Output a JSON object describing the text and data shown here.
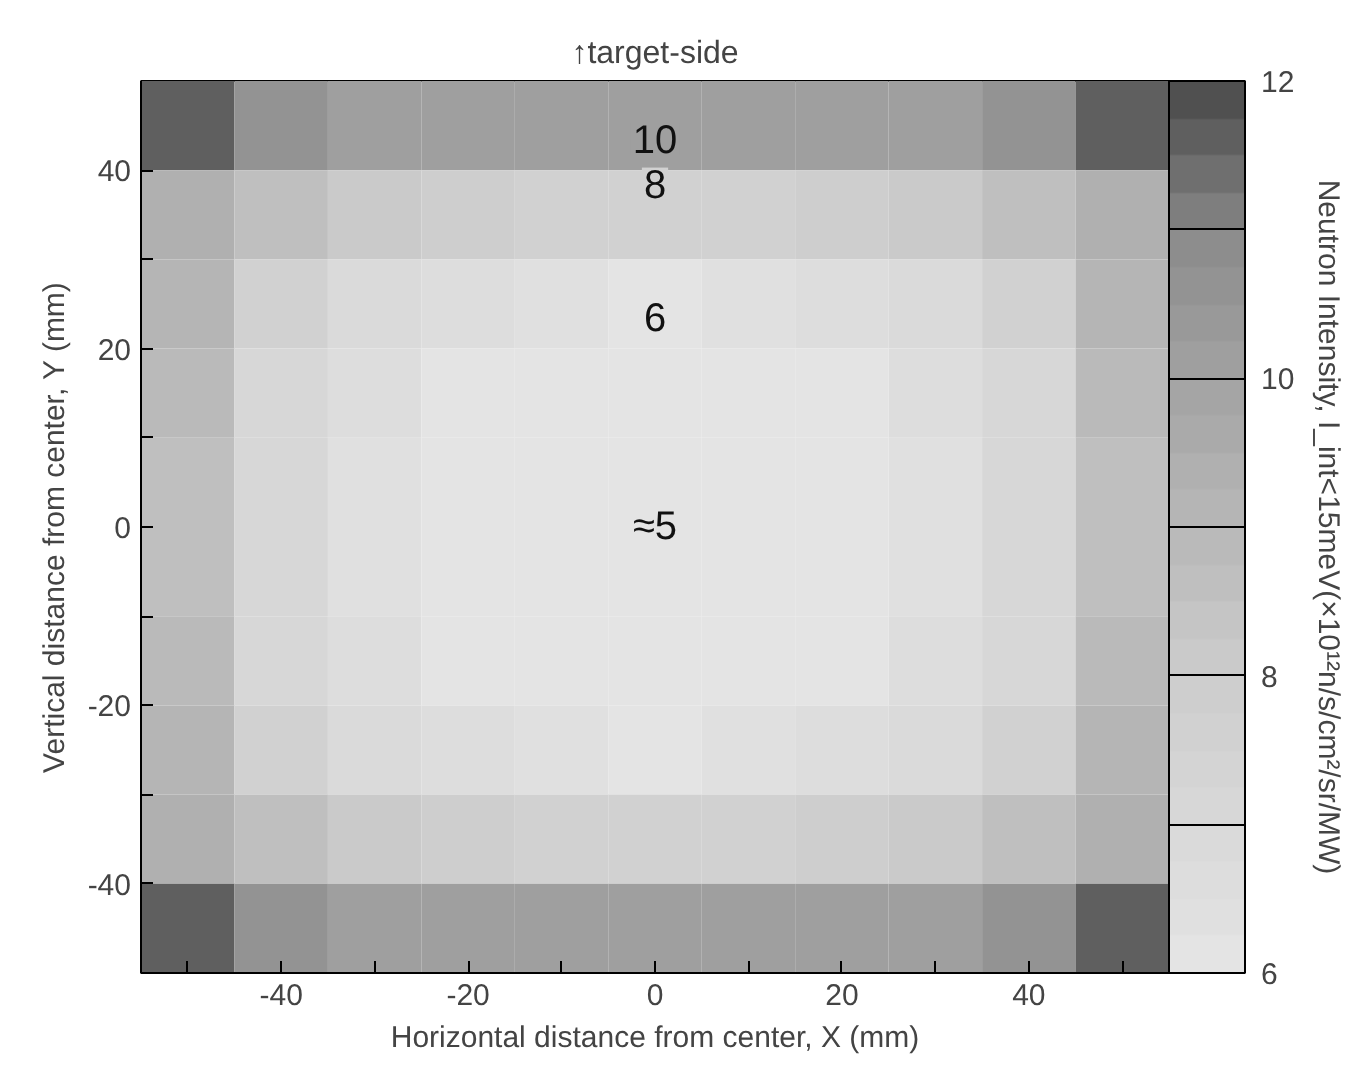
{
  "chart_data": {
    "type": "heatmap",
    "title": "↑target-side",
    "xlabel": "Horizontal distance from center, X (mm)",
    "ylabel": "Vertical distance from center, Y (mm)",
    "clabel": "Neutron Intensity, I_int<15meV(×10¹²n/s/cm²/sr/MW)",
    "x": [
      -50,
      -40,
      -30,
      -20,
      -10,
      0,
      10,
      20,
      30,
      40,
      50
    ],
    "y": [
      45,
      35,
      25,
      15,
      5,
      -5,
      -15,
      -25,
      -35,
      -45
    ],
    "cells": [
      [
        11.5,
        10.5,
        10,
        10,
        10,
        10,
        10,
        10,
        10,
        10.5,
        11.5
      ],
      [
        9.5,
        8.5,
        8,
        7.8,
        7.7,
        7.7,
        7.7,
        7.8,
        8,
        8.5,
        9.5
      ],
      [
        9,
        7.5,
        6.8,
        6.5,
        6.3,
        6.2,
        6.3,
        6.5,
        6.8,
        7.5,
        9
      ],
      [
        8.8,
        7.2,
        6.5,
        6,
        6,
        6,
        6,
        6,
        6.5,
        7.2,
        8.8
      ],
      [
        8.7,
        7,
        6.3,
        6,
        6,
        6,
        6,
        6,
        6.3,
        7,
        8.7
      ],
      [
        8.7,
        7,
        6.3,
        6,
        6,
        6,
        6,
        6,
        6.3,
        7,
        8.7
      ],
      [
        8.8,
        7.2,
        6.5,
        6,
        6,
        6,
        6,
        6,
        6.5,
        7.2,
        8.8
      ],
      [
        9,
        7.5,
        6.8,
        6.5,
        6.3,
        6.2,
        6.3,
        6.5,
        6.8,
        7.5,
        9
      ],
      [
        9.5,
        8.5,
        8,
        7.8,
        7.7,
        7.7,
        7.7,
        7.8,
        8,
        8.5,
        9.5
      ],
      [
        11.5,
        10.5,
        10,
        10,
        10,
        10,
        10,
        10,
        10,
        10.5,
        11.5
      ]
    ],
    "clim": [
      6,
      12
    ],
    "cticks": [
      6,
      {
        "value": 7,
        "label": null
      },
      8,
      {
        "value": 9,
        "label": null
      },
      10,
      {
        "value": 11,
        "label": null
      },
      12
    ],
    "xlim": [
      -55,
      55
    ],
    "xticks": [
      {
        "value": -50,
        "label": null
      },
      -40,
      {
        "value": -30,
        "label": null
      },
      -20,
      {
        "value": -10,
        "label": null
      },
      0,
      {
        "value": 10,
        "label": null
      },
      20,
      {
        "value": 30,
        "label": null
      },
      40,
      {
        "value": 50,
        "label": null
      }
    ],
    "ylim": [
      -50,
      50
    ],
    "yticks": [
      -40,
      {
        "value": -30,
        "label": null
      },
      -20,
      {
        "value": -10,
        "label": null
      },
      0,
      {
        "value": 10,
        "label": null
      },
      20,
      {
        "value": 30,
        "label": null
      },
      40
    ],
    "annotations": [
      "10",
      "8",
      "6",
      "≈5"
    ]
  }
}
